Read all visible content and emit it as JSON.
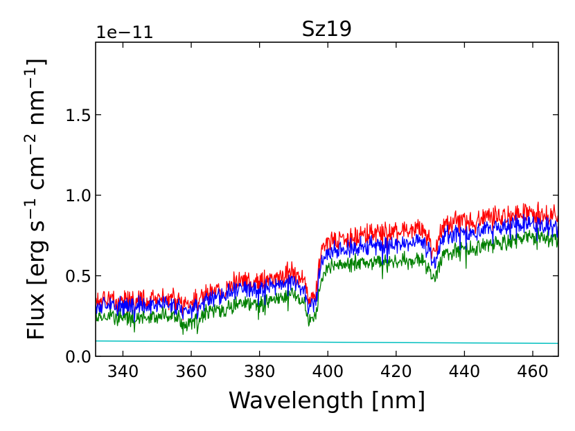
{
  "chart_data": {
    "type": "line",
    "title": "Sz19",
    "xlabel": "Wavelength [nm]",
    "ylabel_parts": [
      "Flux [erg s",
      "−1",
      " cm",
      "−2",
      " nm",
      "−1",
      "]"
    ],
    "y_exponent_label": "1e−11",
    "xlim": [
      332,
      467.5
    ],
    "ylim": [
      0,
      1.95
    ],
    "x_ticks": [
      340,
      360,
      380,
      400,
      420,
      440,
      460
    ],
    "x_tick_labels": [
      "340",
      "360",
      "380",
      "400",
      "420",
      "440",
      "460"
    ],
    "y_ticks": [
      0.0,
      0.5,
      1.0,
      1.5
    ],
    "y_tick_labels": [
      "0.0",
      "0.5",
      "1.0",
      "1.5"
    ],
    "grid": false,
    "series": [
      {
        "name": "red spectrum",
        "color": "#ff0000",
        "x": [
          332,
          336,
          340,
          345,
          350,
          355,
          358,
          362,
          366,
          370,
          374,
          378,
          382,
          386,
          390,
          393,
          394.5,
          396.5,
          398,
          400,
          405,
          410,
          415,
          420,
          425,
          428,
          431,
          434,
          438,
          442,
          446,
          450,
          455,
          460,
          464,
          467
        ],
        "y": [
          0.35,
          0.36,
          0.35,
          0.37,
          0.36,
          0.37,
          0.32,
          0.36,
          0.41,
          0.43,
          0.47,
          0.48,
          0.47,
          0.5,
          0.53,
          0.47,
          0.35,
          0.4,
          0.65,
          0.72,
          0.74,
          0.76,
          0.78,
          0.77,
          0.79,
          0.8,
          0.65,
          0.82,
          0.84,
          0.84,
          0.86,
          0.88,
          0.89,
          0.9,
          0.88,
          0.87
        ],
        "noise": 0.07
      },
      {
        "name": "blue spectrum",
        "color": "#0000ff",
        "x": [
          332,
          336,
          340,
          345,
          350,
          355,
          358,
          362,
          366,
          370,
          374,
          378,
          382,
          386,
          390,
          393,
          394.5,
          396.5,
          398,
          400,
          405,
          410,
          415,
          420,
          425,
          428,
          431,
          434,
          438,
          442,
          446,
          450,
          455,
          460,
          464,
          467
        ],
        "y": [
          0.31,
          0.32,
          0.31,
          0.33,
          0.32,
          0.33,
          0.28,
          0.32,
          0.37,
          0.39,
          0.42,
          0.43,
          0.42,
          0.45,
          0.47,
          0.41,
          0.3,
          0.35,
          0.58,
          0.65,
          0.67,
          0.69,
          0.7,
          0.69,
          0.71,
          0.72,
          0.58,
          0.75,
          0.77,
          0.77,
          0.79,
          0.81,
          0.82,
          0.83,
          0.81,
          0.8
        ],
        "noise": 0.06
      },
      {
        "name": "green spectrum",
        "color": "#008000",
        "x": [
          332,
          336,
          340,
          345,
          350,
          355,
          358,
          362,
          366,
          370,
          374,
          378,
          382,
          386,
          390,
          393,
          394.5,
          396.5,
          398,
          400,
          405,
          410,
          415,
          420,
          425,
          428,
          431,
          434,
          438,
          442,
          446,
          450,
          455,
          460,
          464,
          467
        ],
        "y": [
          0.24,
          0.25,
          0.24,
          0.26,
          0.25,
          0.26,
          0.2,
          0.24,
          0.29,
          0.3,
          0.33,
          0.34,
          0.33,
          0.36,
          0.39,
          0.33,
          0.22,
          0.27,
          0.48,
          0.55,
          0.58,
          0.59,
          0.6,
          0.59,
          0.6,
          0.6,
          0.48,
          0.64,
          0.66,
          0.67,
          0.69,
          0.71,
          0.73,
          0.75,
          0.74,
          0.73
        ],
        "noise": 0.055
      },
      {
        "name": "cyan continuum",
        "color": "#00bfbf",
        "x": [
          332,
          467.5
        ],
        "y": [
          0.095,
          0.08
        ],
        "noise": 0
      }
    ]
  }
}
